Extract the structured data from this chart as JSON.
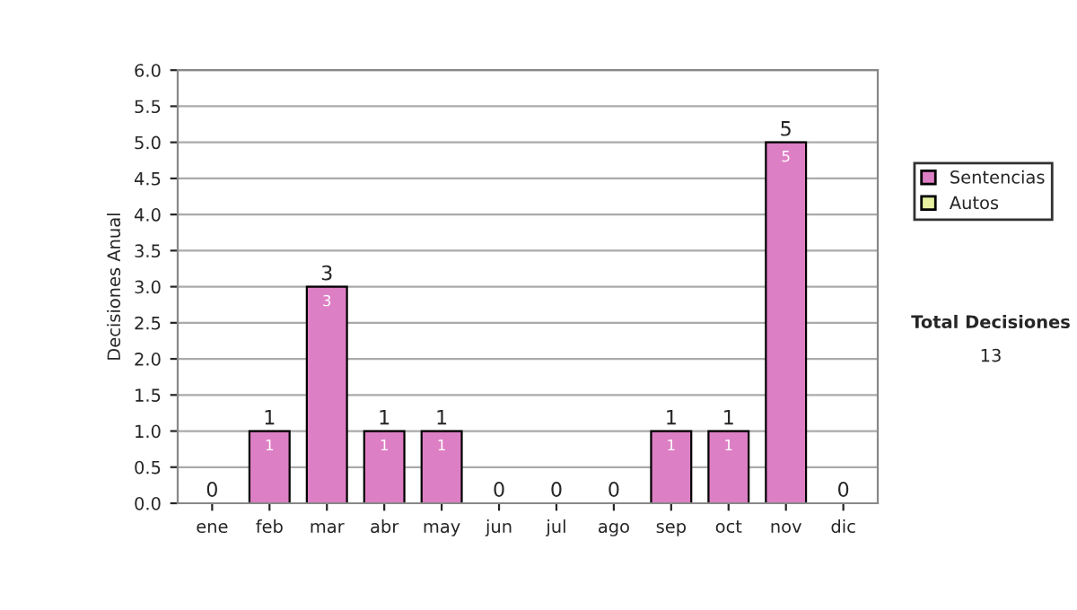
{
  "chart_data": {
    "type": "bar",
    "stacked": true,
    "ylabel": "Decisiones Anual",
    "categories": [
      "ene",
      "feb",
      "mar",
      "abr",
      "may",
      "jun",
      "jul",
      "ago",
      "sep",
      "oct",
      "nov",
      "dic"
    ],
    "series": [
      {
        "name": "Sentencias",
        "color": "#dd7fc4",
        "values": [
          0,
          1,
          3,
          1,
          1,
          0,
          0,
          0,
          1,
          1,
          5,
          0
        ],
        "value_labels": [
          null,
          "1",
          "3",
          "1",
          "1",
          null,
          null,
          null,
          "1",
          "1",
          "5",
          null
        ]
      },
      {
        "name": "Autos",
        "color": "#e6f0a0",
        "values": [
          0,
          0,
          0,
          0,
          0,
          0,
          0,
          0,
          0,
          0,
          0,
          0
        ]
      }
    ],
    "totals": [
      "0",
      "1",
      "3",
      "1",
      "1",
      "0",
      "0",
      "0",
      "1",
      "1",
      "5",
      "0"
    ],
    "ylim": [
      0,
      6
    ],
    "yticks": [
      {
        "value": 0,
        "label": "0.0"
      },
      {
        "value": 0.5,
        "label": "0.5"
      },
      {
        "value": 1,
        "label": "1.0"
      },
      {
        "value": 1.5,
        "label": "1.5"
      },
      {
        "value": 2,
        "label": "2.0"
      },
      {
        "value": 2.5,
        "label": "2.5"
      },
      {
        "value": 3,
        "label": "3.0"
      },
      {
        "value": 3.5,
        "label": "3.5"
      },
      {
        "value": 4,
        "label": "4.0"
      },
      {
        "value": 4.5,
        "label": "4.5"
      },
      {
        "value": 5,
        "label": "5.0"
      },
      {
        "value": 5.5,
        "label": "5.5"
      },
      {
        "value": 6,
        "label": "6.0"
      }
    ],
    "grid": "y",
    "legend": "right",
    "annotations": [
      "Total Decisiones",
      "13"
    ]
  }
}
